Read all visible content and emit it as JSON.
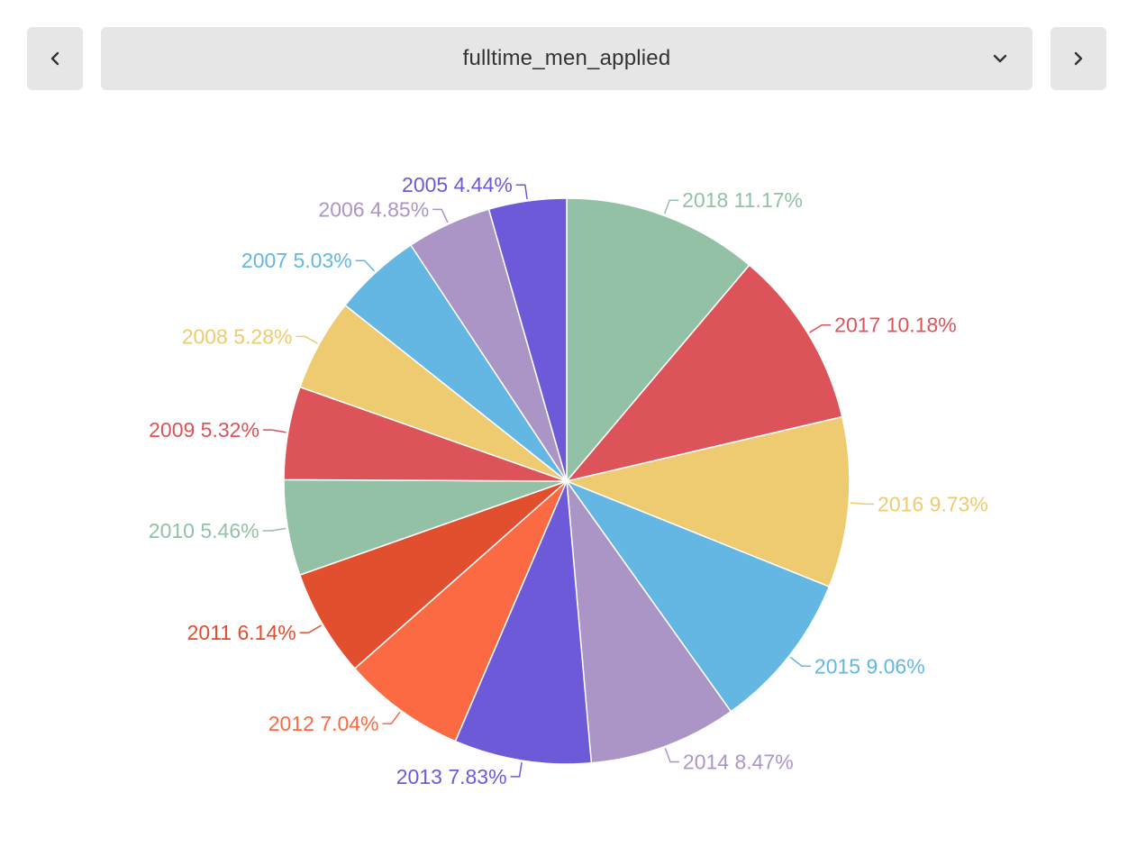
{
  "selector": {
    "value": "fulltime_men_applied"
  },
  "icons": {
    "prev": "chevron-left-icon",
    "next": "chevron-right-icon",
    "dropdown": "chevron-down-icon"
  },
  "chart_data": {
    "type": "pie",
    "title": "",
    "start": "top",
    "direction": "clockwise",
    "slices": [
      {
        "label": "2018",
        "value": 11.17,
        "pct": "11.17%",
        "color": "#93c1a6"
      },
      {
        "label": "2017",
        "value": 10.18,
        "pct": "10.18%",
        "color": "#dc535a"
      },
      {
        "label": "2016",
        "value": 9.73,
        "pct": "9.73%",
        "color": "#eeca70"
      },
      {
        "label": "2015",
        "value": 9.06,
        "pct": "9.06%",
        "color": "#63b7e2"
      },
      {
        "label": "2014",
        "value": 8.47,
        "pct": "8.47%",
        "color": "#ab95c6"
      },
      {
        "label": "2013",
        "value": 7.83,
        "pct": "7.83%",
        "color": "#6c5ad9"
      },
      {
        "label": "2012",
        "value": 7.04,
        "pct": "7.04%",
        "color": "#fc6a43"
      },
      {
        "label": "2011",
        "value": 6.14,
        "pct": "6.14%",
        "color": "#e24f2e"
      },
      {
        "label": "2010",
        "value": 5.46,
        "pct": "5.46%",
        "color": "#93c1a6"
      },
      {
        "label": "2009",
        "value": 5.32,
        "pct": "5.32%",
        "color": "#dc535a"
      },
      {
        "label": "2008",
        "value": 5.28,
        "pct": "5.28%",
        "color": "#eeca70"
      },
      {
        "label": "2007",
        "value": 5.03,
        "pct": "5.03%",
        "color": "#63b7e2"
      },
      {
        "label": "2006",
        "value": 4.85,
        "pct": "4.85%",
        "color": "#ab95c6"
      },
      {
        "label": "2005",
        "value": 4.44,
        "pct": "4.44%",
        "color": "#6c5ad9"
      }
    ]
  }
}
